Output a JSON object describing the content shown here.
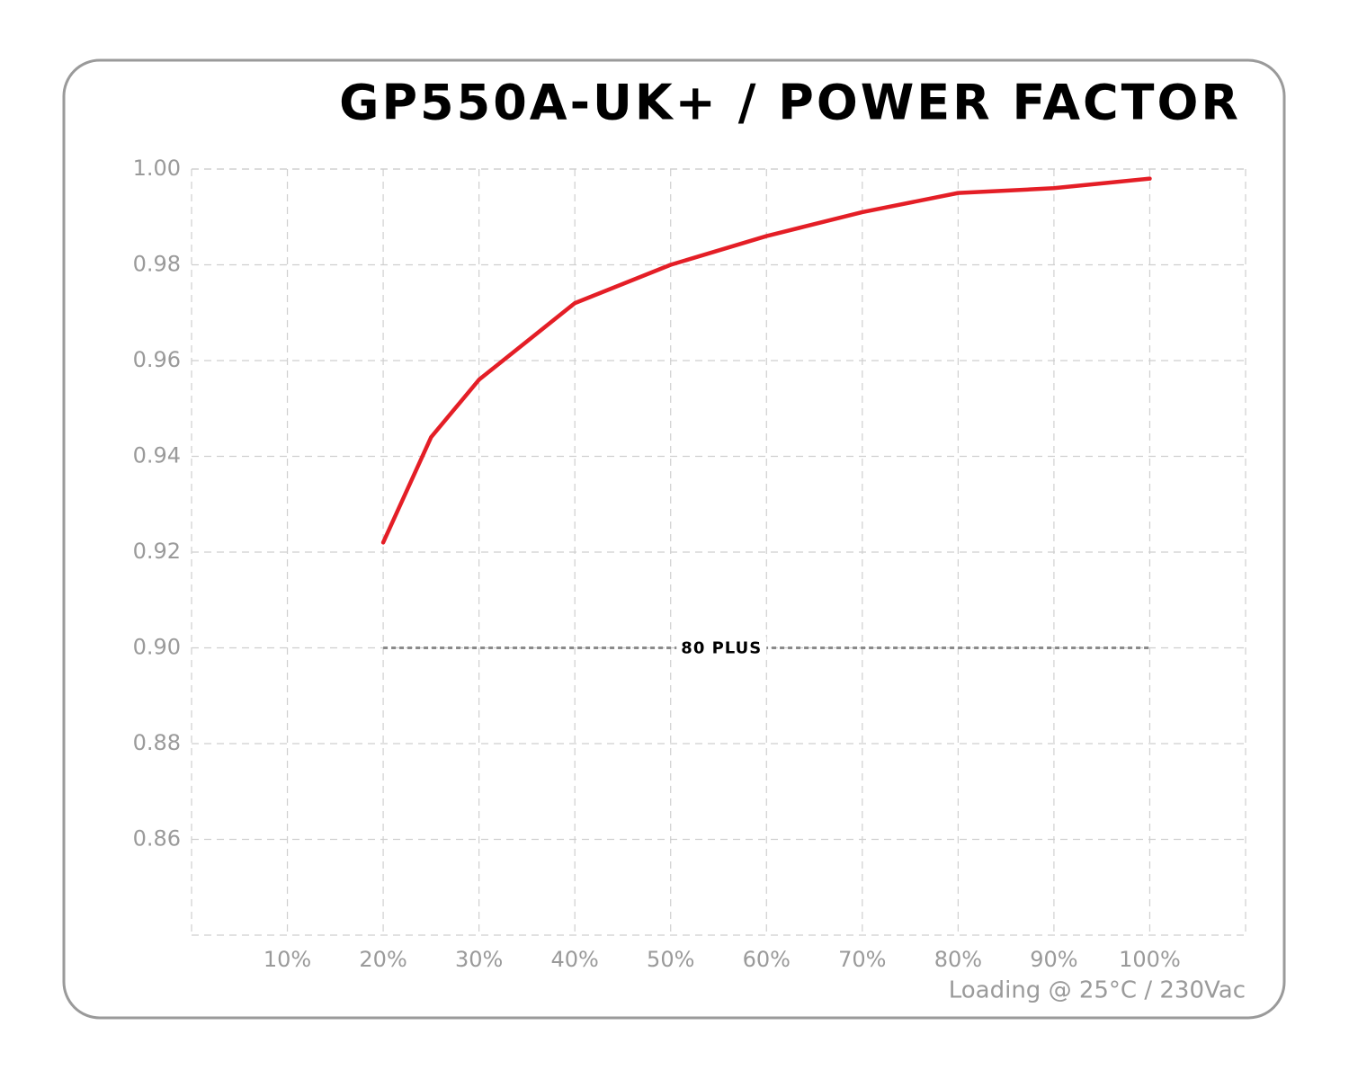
{
  "chart_data": {
    "type": "line",
    "title": "GP550A-UK+  / POWER FACTOR",
    "x_label": "Loading @ 25°C / 230Vac",
    "x": [
      20,
      25,
      30,
      40,
      50,
      60,
      70,
      80,
      90,
      100
    ],
    "series": [
      {
        "color": "#e41e26",
        "values": [
          0.922,
          0.944,
          0.956,
          0.972,
          0.98,
          0.986,
          0.991,
          0.995,
          0.996,
          0.998
        ]
      }
    ],
    "reference": {
      "label": "80 PLUS",
      "value": 0.9,
      "x": [
        20,
        100
      ]
    },
    "xlim": [
      0,
      110
    ],
    "xticks": [
      {
        "value": 10,
        "label": "10%"
      },
      {
        "value": 20,
        "label": "20%"
      },
      {
        "value": 30,
        "label": "30%"
      },
      {
        "value": 40,
        "label": "40%"
      },
      {
        "value": 50,
        "label": "50%"
      },
      {
        "value": 60,
        "label": "60%"
      },
      {
        "value": 70,
        "label": "70%"
      },
      {
        "value": 80,
        "label": "80%"
      },
      {
        "value": 90,
        "label": "90%"
      },
      {
        "value": 100,
        "label": "100%"
      }
    ],
    "ylim": [
      0.84,
      1.0
    ],
    "yticks": [
      0.86,
      0.88,
      {
        "value": 0.9,
        "label": "0.90"
      },
      0.92,
      0.94,
      0.96,
      0.98,
      {
        "value": 1.0,
        "label": "1.00"
      }
    ],
    "grid": true
  }
}
